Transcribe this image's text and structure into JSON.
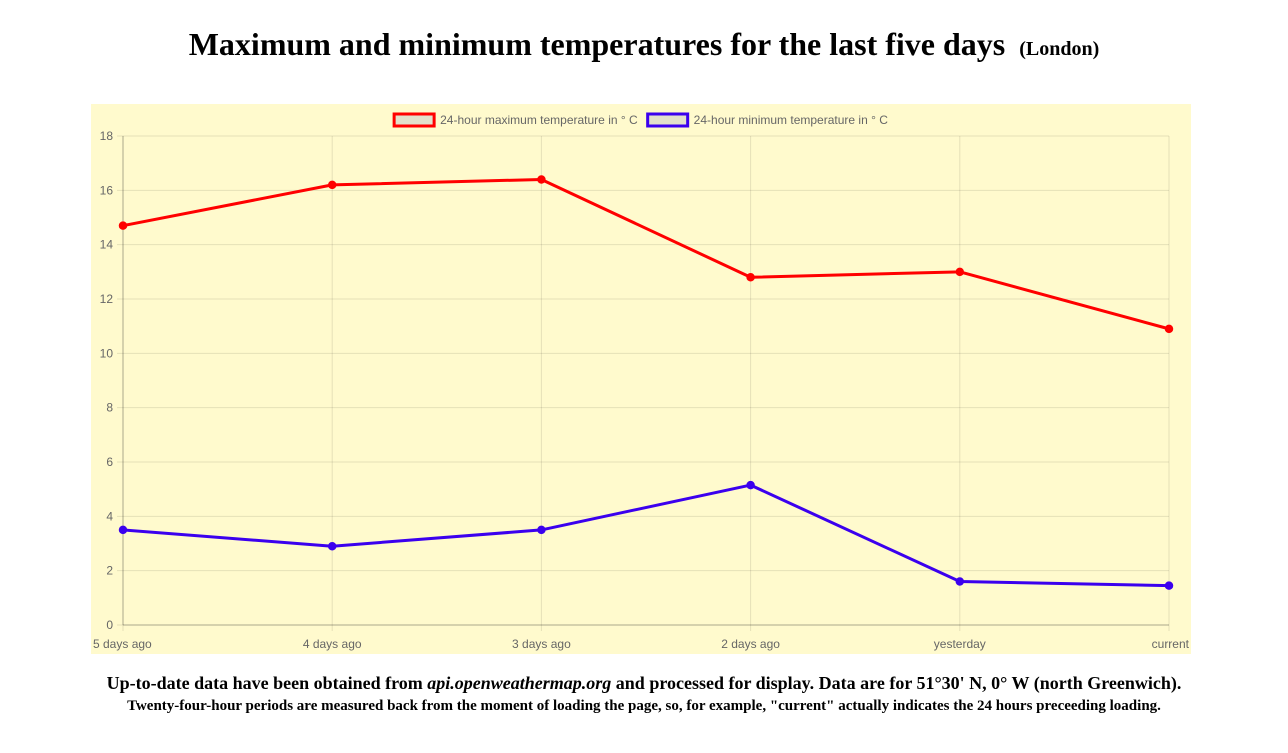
{
  "header": {
    "title": "Maximum and minimum temperatures for the last five days",
    "location": "(London)"
  },
  "chart_data": {
    "type": "line",
    "categories": [
      "5 days ago",
      "4 days ago",
      "3 days ago",
      "2 days ago",
      "yesterday",
      "current"
    ],
    "series": [
      {
        "name": "24-hour maximum temperature in ° C",
        "values": [
          14.7,
          16.2,
          16.4,
          12.8,
          13.0,
          10.9
        ],
        "color": "#ff0000"
      },
      {
        "name": "24-hour minimum temperature in ° C",
        "values": [
          3.5,
          2.9,
          3.5,
          5.15,
          1.6,
          1.45
        ],
        "color": "#3b00ee"
      }
    ],
    "yticks": [
      "0",
      "2",
      "4",
      "6",
      "8",
      "10",
      "12",
      "14",
      "16",
      "18"
    ],
    "ylim": [
      0,
      18
    ],
    "grid": true,
    "legend": "top-center",
    "background": "#fffacd",
    "legend_box_fill": "#e3e0cb"
  },
  "footer": {
    "line1_prefix": "Up-to-date data have been obtained from ",
    "line1_source": "api.openweathermap.org",
    "line1_suffix": " and processed for display. Data are for 51°30' N, 0° W (north Greenwich).",
    "line2": "Twenty-four-hour periods are measured back from the moment of loading the page, so, for example, \"current\" actually indicates the 24 hours preceeding loading."
  }
}
